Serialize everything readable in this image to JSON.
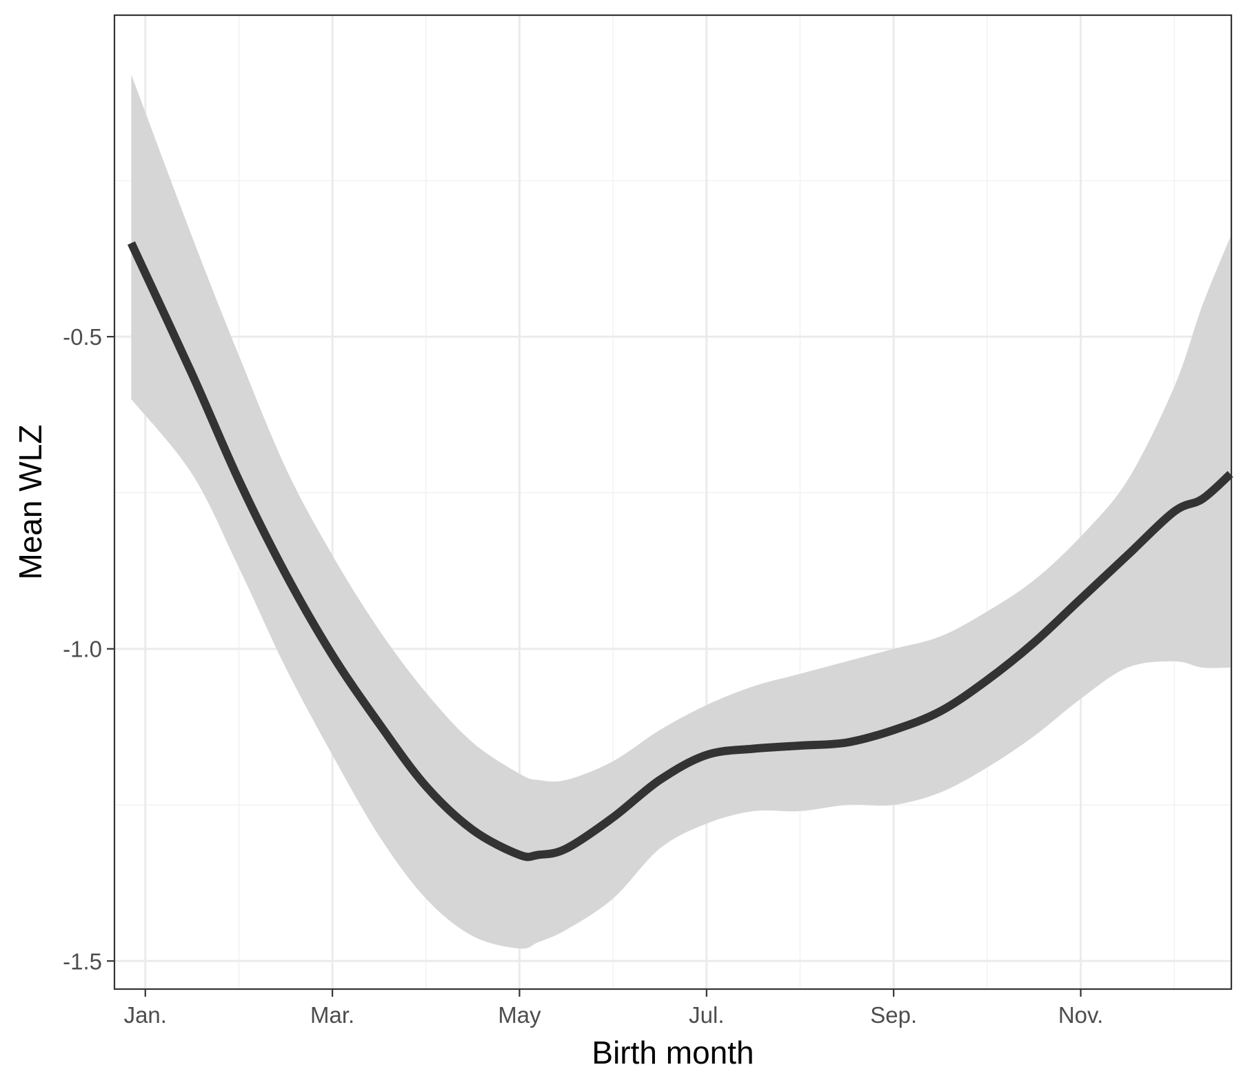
{
  "chart_data": {
    "type": "line",
    "title": "",
    "xlabel": "Birth month",
    "ylabel": "Mean WLZ",
    "x_ticks": [
      {
        "label": "Jan.",
        "value": 1
      },
      {
        "label": "Mar.",
        "value": 3
      },
      {
        "label": "May",
        "value": 5
      },
      {
        "label": "Jul.",
        "value": 7
      },
      {
        "label": "Sep.",
        "value": 9
      },
      {
        "label": "Nov.",
        "value": 11
      }
    ],
    "y_ticks": [
      {
        "label": "-0.5",
        "value": -0.5
      },
      {
        "label": "-1.0",
        "value": -1.0
      },
      {
        "label": "-1.5",
        "value": -1.5
      }
    ],
    "xlim": [
      0.67,
      12.61
    ],
    "ylim": [
      -1.545,
      0.015
    ],
    "grid": true,
    "legend": "none",
    "series": [
      {
        "x": [
          0.85,
          1.5,
          2.0,
          2.5,
          3.0,
          3.5,
          4.0,
          4.5,
          5.0,
          5.2,
          5.5,
          6.0,
          6.5,
          7.0,
          7.5,
          8.0,
          8.5,
          9.0,
          9.5,
          10.0,
          10.5,
          11.0,
          11.5,
          12.0,
          12.3,
          12.6
        ],
        "y": [
          -0.35,
          -0.56,
          -0.73,
          -0.88,
          -1.01,
          -1.12,
          -1.22,
          -1.29,
          -1.33,
          -1.33,
          -1.32,
          -1.27,
          -1.21,
          -1.17,
          -1.16,
          -1.155,
          -1.15,
          -1.13,
          -1.1,
          -1.05,
          -0.99,
          -0.92,
          -0.85,
          -0.78,
          -0.76,
          -0.72
        ],
        "lower": [
          -0.6,
          -0.72,
          -0.87,
          -1.03,
          -1.17,
          -1.3,
          -1.4,
          -1.46,
          -1.48,
          -1.47,
          -1.45,
          -1.4,
          -1.32,
          -1.28,
          -1.26,
          -1.26,
          -1.25,
          -1.25,
          -1.23,
          -1.19,
          -1.14,
          -1.08,
          -1.03,
          -1.02,
          -1.03,
          -1.03
        ],
        "upper": [
          -0.08,
          -0.34,
          -0.53,
          -0.71,
          -0.85,
          -0.97,
          -1.07,
          -1.15,
          -1.2,
          -1.21,
          -1.21,
          -1.18,
          -1.13,
          -1.09,
          -1.06,
          -1.04,
          -1.02,
          -1.0,
          -0.98,
          -0.94,
          -0.89,
          -0.82,
          -0.73,
          -0.58,
          -0.45,
          -0.34
        ],
        "line_color": "#333333",
        "band_color": "#d6d6d6"
      }
    ],
    "colors": {
      "major_grid": "#ebebeb",
      "minor_grid": "#f2f2f2",
      "panel_border": "#333333"
    }
  }
}
